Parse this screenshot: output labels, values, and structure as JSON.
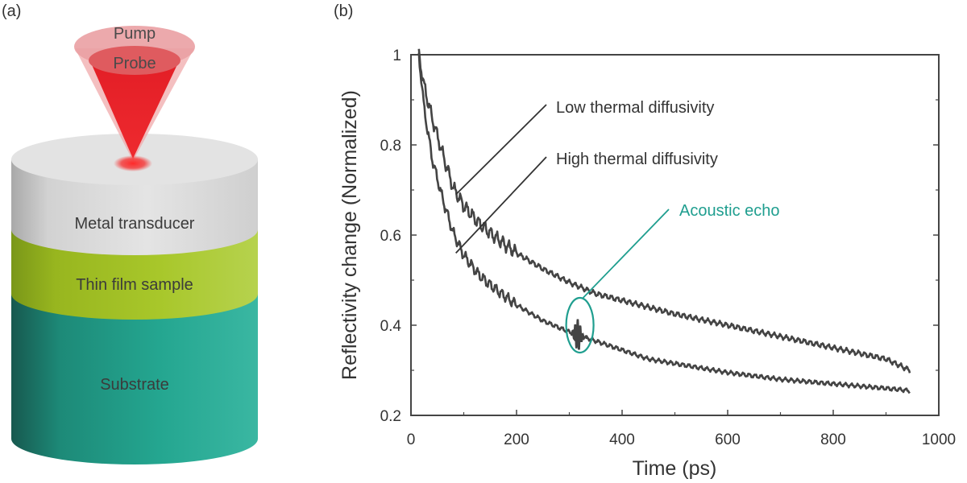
{
  "panel_a": {
    "label": "(a)",
    "beam": {
      "pump_label": "Pump",
      "probe_label": "Probe"
    },
    "layers": {
      "metal": "Metal transducer",
      "film": "Thin film sample",
      "substrate": "Substrate"
    },
    "colors": {
      "beam": "#e8222a",
      "metal": "#dcdcdc",
      "film": "#a9c526",
      "substrate": "#27a995"
    }
  },
  "panel_b": {
    "label": "(b)"
  },
  "chart_data": {
    "type": "line",
    "title": "",
    "xlabel": "Time (ps)",
    "ylabel": "Reflectivity change (Normalized)",
    "xlim": [
      0,
      1000
    ],
    "ylim": [
      0.2,
      1.0
    ],
    "xticks": [
      0,
      200,
      400,
      600,
      800,
      1000
    ],
    "yticks": [
      0.2,
      0.4,
      0.6,
      0.8,
      1.0
    ],
    "xtick_labels": [
      "0",
      "200",
      "400",
      "600",
      "800",
      "1000"
    ],
    "ytick_labels": [
      "0.2",
      "0.4",
      "0.6",
      "0.8",
      "1"
    ],
    "grid": false,
    "series": [
      {
        "x": [
          15,
          25,
          40,
          60,
          80,
          100,
          130,
          160,
          200,
          250,
          300,
          350,
          400,
          450,
          500,
          600,
          700,
          800,
          900,
          945
        ],
        "y": [
          1.0,
          0.93,
          0.86,
          0.78,
          0.705,
          0.665,
          0.625,
          0.595,
          0.56,
          0.525,
          0.495,
          0.47,
          0.455,
          0.44,
          0.425,
          0.4,
          0.375,
          0.35,
          0.325,
          0.3
        ],
        "color": "#444444"
      },
      {
        "x": [
          15,
          25,
          40,
          60,
          80,
          100,
          130,
          160,
          200,
          250,
          300,
          350,
          400,
          450,
          500,
          600,
          700,
          800,
          900,
          945
        ],
        "y": [
          1.0,
          0.88,
          0.77,
          0.68,
          0.605,
          0.555,
          0.51,
          0.48,
          0.445,
          0.41,
          0.385,
          0.365,
          0.345,
          0.325,
          0.315,
          0.295,
          0.28,
          0.27,
          0.26,
          0.255
        ],
        "color": "#444444"
      }
    ],
    "annotations": [
      {
        "text": "Low thermal diffusivity",
        "point": [
          85,
          0.69
        ],
        "color": "#333333"
      },
      {
        "text": "High thermal diffusivity",
        "point": [
          85,
          0.56
        ],
        "color": "#333333"
      },
      {
        "text": "Acoustic echo",
        "point": [
          320,
          0.4
        ],
        "color": "#1f9e8f"
      }
    ]
  }
}
